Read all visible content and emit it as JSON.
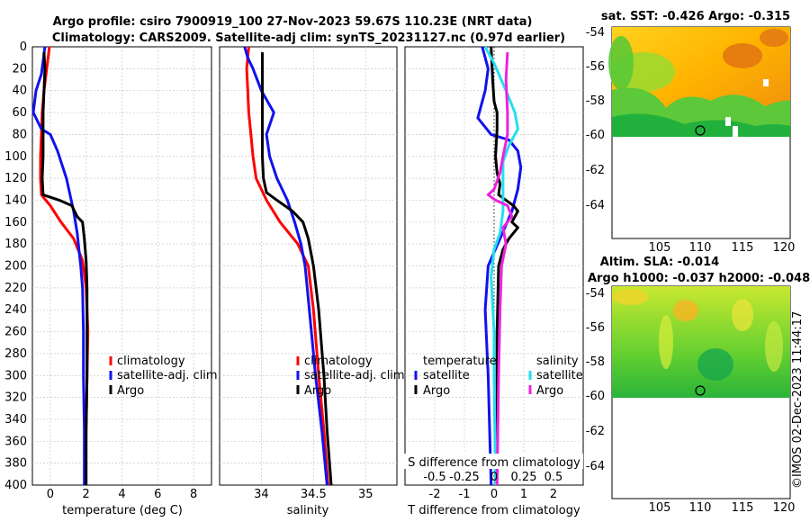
{
  "title_line1": "Argo profile: csiro 7900919_100 27-Nov-2023 59.67S 110.23E (NRT data)",
  "title_line2": "Climatology: CARS2009. Satellite-adj clim: synTS_20231127.nc (0.97d earlier)",
  "colors": {
    "red": "#ff0000",
    "blue": "#1111ee",
    "black": "#000000",
    "cyan": "#22e0ee",
    "magenta": "#ee22dd"
  },
  "chart_data": [
    {
      "type": "line",
      "name": "temperature-profile",
      "xlabel": "temperature (deg C)",
      "ylim": [
        0,
        400
      ],
      "xlim": [
        -1,
        9
      ],
      "yticks": [
        "0",
        "20",
        "40",
        "60",
        "80",
        "100",
        "120",
        "140",
        "160",
        "180",
        "200",
        "220",
        "240",
        "260",
        "280",
        "300",
        "320",
        "340",
        "360",
        "380",
        "400"
      ],
      "xticks": [
        {
          "v": 0,
          "label": "0"
        },
        {
          "v": 2,
          "label": "2"
        },
        {
          "v": 4,
          "label": "4"
        },
        {
          "v": 6,
          "label": "6"
        },
        {
          "v": 8,
          "label": "8"
        }
      ],
      "legend": {
        "entries": [
          "climatology",
          "satellite-adj. clim",
          "Argo"
        ]
      },
      "series": [
        {
          "name": "climatology",
          "color": "red",
          "points": [
            [
              -0.05,
              0
            ],
            [
              -0.2,
              20
            ],
            [
              -0.35,
              40
            ],
            [
              -0.45,
              60
            ],
            [
              -0.5,
              80
            ],
            [
              -0.55,
              100
            ],
            [
              -0.55,
              120
            ],
            [
              -0.5,
              135
            ],
            [
              0.0,
              145
            ],
            [
              0.6,
              160
            ],
            [
              1.3,
              175
            ],
            [
              1.8,
              195
            ],
            [
              2.0,
              220
            ],
            [
              2.1,
              260
            ],
            [
              2.05,
              300
            ],
            [
              2.0,
              350
            ],
            [
              1.95,
              400
            ]
          ]
        },
        {
          "name": "satellite-adj. clim",
          "color": "blue",
          "points": [
            [
              -0.3,
              0
            ],
            [
              -0.5,
              25
            ],
            [
              -0.8,
              40
            ],
            [
              -0.95,
              60
            ],
            [
              -0.5,
              75
            ],
            [
              0.0,
              80
            ],
            [
              0.4,
              95
            ],
            [
              0.9,
              120
            ],
            [
              1.3,
              150
            ],
            [
              1.5,
              170
            ],
            [
              1.6,
              185
            ],
            [
              1.7,
              200
            ],
            [
              1.8,
              220
            ],
            [
              1.85,
              260
            ],
            [
              1.85,
              300
            ],
            [
              1.9,
              350
            ],
            [
              1.9,
              400
            ]
          ]
        },
        {
          "name": "Argo",
          "color": "black",
          "points": [
            [
              -0.35,
              5
            ],
            [
              -0.3,
              20
            ],
            [
              -0.35,
              40
            ],
            [
              -0.4,
              60
            ],
            [
              -0.4,
              80
            ],
            [
              -0.4,
              100
            ],
            [
              -0.45,
              120
            ],
            [
              -0.4,
              135
            ],
            [
              0.5,
              140
            ],
            [
              1.2,
              145
            ],
            [
              1.5,
              155
            ],
            [
              1.8,
              160
            ],
            [
              1.9,
              175
            ],
            [
              2.0,
              195
            ],
            [
              2.05,
              220
            ],
            [
              2.05,
              260
            ],
            [
              2.05,
              300
            ],
            [
              2.0,
              350
            ],
            [
              2.0,
              400
            ]
          ]
        }
      ]
    },
    {
      "type": "line",
      "name": "salinity-profile",
      "xlabel": "salinity",
      "ylim": [
        0,
        400
      ],
      "xlim": [
        33.6,
        35.3
      ],
      "xticks": [
        {
          "v": 34,
          "label": "34"
        },
        {
          "v": 34.5,
          "label": "34.5"
        },
        {
          "v": 35,
          "label": "35"
        }
      ],
      "legend": {
        "entries": [
          "climatology",
          "satellite-adj. clim",
          "Argo"
        ]
      },
      "series": [
        {
          "name": "climatology",
          "color": "red",
          "points": [
            [
              33.88,
              0
            ],
            [
              33.86,
              20
            ],
            [
              33.87,
              40
            ],
            [
              33.88,
              60
            ],
            [
              33.9,
              80
            ],
            [
              33.92,
              100
            ],
            [
              33.95,
              120
            ],
            [
              34.05,
              140
            ],
            [
              34.18,
              160
            ],
            [
              34.35,
              180
            ],
            [
              34.45,
              200
            ],
            [
              34.5,
              240
            ],
            [
              34.55,
              300
            ],
            [
              34.6,
              350
            ],
            [
              34.64,
              400
            ]
          ]
        },
        {
          "name": "satellite-adj. clim",
          "color": "blue",
          "points": [
            [
              33.84,
              0
            ],
            [
              33.87,
              10
            ],
            [
              33.92,
              20
            ],
            [
              34.0,
              40
            ],
            [
              34.12,
              60
            ],
            [
              34.05,
              80
            ],
            [
              34.08,
              100
            ],
            [
              34.15,
              120
            ],
            [
              34.25,
              140
            ],
            [
              34.32,
              160
            ],
            [
              34.38,
              180
            ],
            [
              34.42,
              200
            ],
            [
              34.46,
              240
            ],
            [
              34.52,
              300
            ],
            [
              34.58,
              350
            ],
            [
              34.63,
              400
            ]
          ]
        },
        {
          "name": "Argo",
          "color": "black",
          "points": [
            [
              34.01,
              5
            ],
            [
              34.01,
              20
            ],
            [
              34.01,
              40
            ],
            [
              34.01,
              60
            ],
            [
              34.01,
              80
            ],
            [
              34.01,
              100
            ],
            [
              34.02,
              120
            ],
            [
              34.05,
              133
            ],
            [
              34.15,
              140
            ],
            [
              34.3,
              150
            ],
            [
              34.4,
              160
            ],
            [
              34.45,
              175
            ],
            [
              34.5,
              200
            ],
            [
              34.55,
              240
            ],
            [
              34.6,
              300
            ],
            [
              34.63,
              350
            ],
            [
              34.67,
              400
            ]
          ]
        }
      ]
    },
    {
      "type": "line",
      "name": "difference-profile",
      "xlabel": "T difference from climatology",
      "top_axis_label": "S difference from climatology",
      "ylim": [
        0,
        400
      ],
      "xlim": [
        -3,
        3
      ],
      "xticks": [
        {
          "v": -2,
          "label": "-2"
        },
        {
          "v": -1,
          "label": "-1"
        },
        {
          "v": 0,
          "label": "0"
        },
        {
          "v": 1,
          "label": "1"
        },
        {
          "v": 2,
          "label": "2"
        }
      ],
      "top_ticks": [
        {
          "v": -2,
          "label": "-0.5"
        },
        {
          "v": -1,
          "label": "-0.25"
        },
        {
          "v": 0,
          "label": "0"
        },
        {
          "v": 1,
          "label": "0.25"
        },
        {
          "v": 2,
          "label": "0.5"
        }
      ],
      "legend": {
        "col1_title": "temperature",
        "col2_title": "salinity",
        "col1_entries": [
          "satellite",
          "Argo"
        ],
        "col2_entries": [
          "satellite",
          "Argo"
        ]
      },
      "series": [
        {
          "name": "temperature satellite",
          "color": "blue",
          "points": [
            [
              -0.4,
              0
            ],
            [
              -0.2,
              20
            ],
            [
              -0.3,
              40
            ],
            [
              -0.55,
              65
            ],
            [
              -0.1,
              80
            ],
            [
              0.5,
              85
            ],
            [
              0.8,
              95
            ],
            [
              0.9,
              110
            ],
            [
              0.8,
              130
            ],
            [
              0.6,
              150
            ],
            [
              0.2,
              175
            ],
            [
              -0.2,
              200
            ],
            [
              -0.3,
              240
            ],
            [
              -0.2,
              300
            ],
            [
              -0.1,
              400
            ]
          ]
        },
        {
          "name": "temperature Argo",
          "color": "black",
          "points": [
            [
              -0.1,
              0
            ],
            [
              -0.05,
              30
            ],
            [
              0.0,
              50
            ],
            [
              0.1,
              60
            ],
            [
              0.1,
              75
            ],
            [
              0.05,
              100
            ],
            [
              0.1,
              115
            ],
            [
              0.2,
              125
            ],
            [
              0.15,
              135
            ],
            [
              0.4,
              140
            ],
            [
              0.65,
              145
            ],
            [
              0.8,
              150
            ],
            [
              0.6,
              160
            ],
            [
              0.8,
              165
            ],
            [
              0.5,
              175
            ],
            [
              0.3,
              185
            ],
            [
              0.15,
              200
            ],
            [
              0.1,
              260
            ],
            [
              0.1,
              350
            ],
            [
              0.05,
              400
            ]
          ]
        },
        {
          "name": "salinity satellite",
          "color": "cyan",
          "points": [
            [
              -0.3,
              0
            ],
            [
              0.0,
              15
            ],
            [
              0.4,
              40
            ],
            [
              0.7,
              60
            ],
            [
              0.8,
              75
            ],
            [
              0.5,
              90
            ],
            [
              0.3,
              105
            ],
            [
              0.3,
              130
            ],
            [
              0.3,
              150
            ],
            [
              0.2,
              170
            ],
            [
              0.0,
              185
            ],
            [
              -0.1,
              210
            ],
            [
              0.0,
              260
            ],
            [
              0.0,
              300
            ],
            [
              0.05,
              400
            ]
          ]
        },
        {
          "name": "salinity Argo",
          "color": "magenta",
          "points": [
            [
              0.45,
              5
            ],
            [
              0.4,
              30
            ],
            [
              0.45,
              60
            ],
            [
              0.45,
              80
            ],
            [
              0.3,
              100
            ],
            [
              0.2,
              115
            ],
            [
              0.0,
              130
            ],
            [
              -0.2,
              135
            ],
            [
              0.05,
              140
            ],
            [
              0.45,
              145
            ],
            [
              0.6,
              155
            ],
            [
              0.3,
              165
            ],
            [
              0.4,
              180
            ],
            [
              0.25,
              200
            ],
            [
              0.2,
              240
            ],
            [
              0.15,
              300
            ],
            [
              0.1,
              400
            ]
          ]
        }
      ]
    }
  ],
  "map_sst": {
    "title": "sat. SST: -0.426 Argo: -0.315",
    "yticks": [
      "-54",
      "-56",
      "-58",
      "-60",
      "-62",
      "-64"
    ],
    "xticks": [
      "105",
      "110",
      "115",
      "120"
    ]
  },
  "map_sla": {
    "title1": "Altim. SLA: -0.014",
    "title2": "Argo h1000: -0.037 h2000: -0.048",
    "yticks": [
      "-54",
      "-56",
      "-58",
      "-60",
      "-62",
      "-64"
    ],
    "xticks": [
      "105",
      "110",
      "115",
      "120"
    ]
  },
  "watermark": "©IMOS 02-Dec-2023 11:44:17"
}
